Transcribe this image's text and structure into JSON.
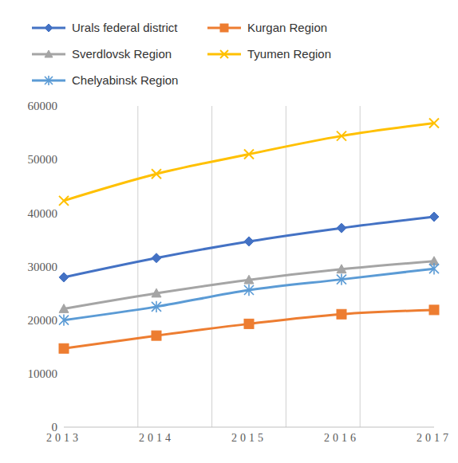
{
  "chart_data": {
    "type": "line",
    "categories": [
      "2013",
      "2014",
      "2015",
      "2016",
      "2017"
    ],
    "series": [
      {
        "name": "Urals federal district",
        "color": "#4472C4",
        "marker": "diamond",
        "values": [
          28000,
          31600,
          34700,
          37200,
          39300
        ]
      },
      {
        "name": "Kurgan Region",
        "color": "#ED7D31",
        "marker": "square",
        "values": [
          14700,
          17100,
          19300,
          21100,
          21900
        ]
      },
      {
        "name": "Sverdlovsk Region",
        "color": "#A5A5A5",
        "marker": "triangle",
        "values": [
          22100,
          25000,
          27500,
          29500,
          31000
        ]
      },
      {
        "name": "Tyumen Region",
        "color": "#FFC000",
        "marker": "x",
        "values": [
          42300,
          47300,
          51000,
          54400,
          56800
        ]
      },
      {
        "name": "Chelyabinsk Region",
        "color": "#5B9BD5",
        "marker": "star",
        "values": [
          20000,
          22500,
          25600,
          27600,
          29600
        ]
      }
    ],
    "ylim": [
      0,
      60000
    ],
    "yticks": [
      0,
      10000,
      20000,
      30000,
      40000,
      50000,
      60000
    ],
    "grid": true,
    "legend": "top"
  }
}
